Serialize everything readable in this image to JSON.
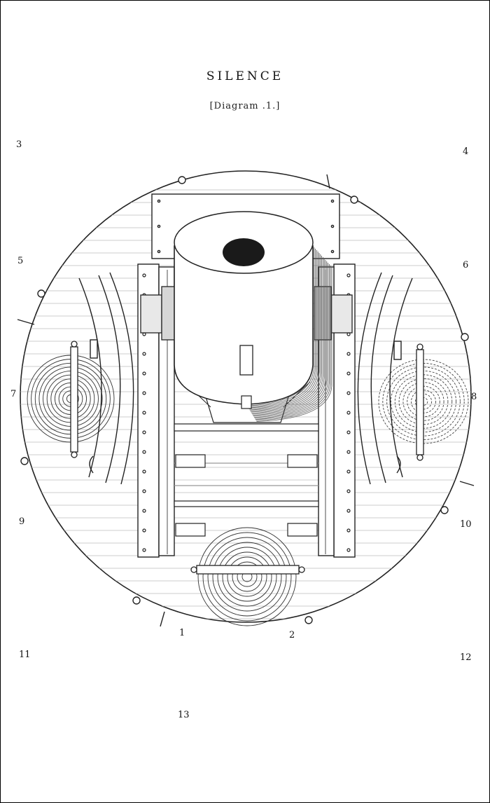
{
  "title": "SILENCE",
  "subtitle": "[Diagram .1.]",
  "labels": {
    "n1": "1",
    "n2": "2",
    "n3": "3",
    "n4": "4",
    "n5": "5",
    "n6": "6",
    "n7": "7",
    "n8": "8",
    "n9": "9",
    "n10": "10",
    "n11": "11",
    "n12": "12",
    "n13": "13"
  },
  "colors": {
    "ink": "#222222",
    "paper": "#ffffff"
  }
}
